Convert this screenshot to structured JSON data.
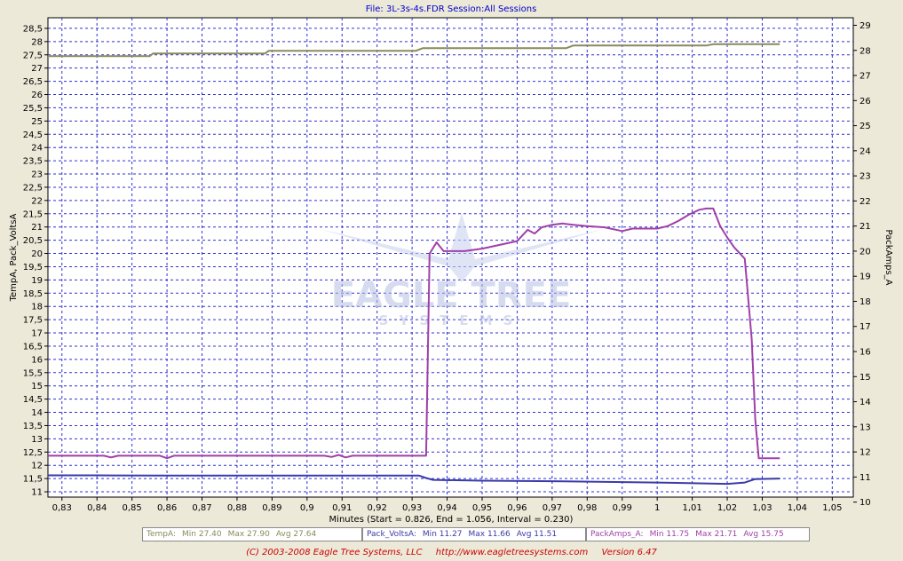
{
  "title": "File: 3L-3s-4s.FDR   Session:All Sessions",
  "watermark": {
    "line1": "EAGLE TREE",
    "line2": "SYSTEMS"
  },
  "footer": {
    "copyright": "(C) 2003-2008 Eagle Tree Systems, LLC",
    "url": "http://www.eagletreesystems.com",
    "version": "Version 6.47"
  },
  "legend": [
    {
      "name": "TempA:",
      "min": "Min 27.40",
      "max": "Max 27.90",
      "avg": "Avg 27.64",
      "color": "#8a8a5a"
    },
    {
      "name": "Pack_VoltsA:",
      "min": "Min 11.27",
      "max": "Max 11.66",
      "avg": "Avg 11.51",
      "color": "#3a3aa8"
    },
    {
      "name": "PackAmps_A:",
      "min": "Min 11.75",
      "max": "Max 21.71",
      "avg": "Avg 15.75",
      "color": "#a040a8"
    }
  ],
  "chart_data": {
    "type": "line",
    "xlabel": "Minutes (Start = 0.826,  End = 1.056,  Interval =  0.230)",
    "ylabel_left": "TempA, Pack_VoltsA",
    "ylabel_right": "PackAmps_A",
    "xlim": [
      0.826,
      1.056
    ],
    "ylim_left": [
      10.8,
      28.9
    ],
    "ylim_right": [
      10.2,
      29.3
    ],
    "x_ticks": [
      "0,83",
      "0,84",
      "0,85",
      "0,86",
      "0,87",
      "0,88",
      "0,89",
      "0,9",
      "0,91",
      "0,92",
      "0,93",
      "0,94",
      "0,95",
      "0,96",
      "0,97",
      "0,98",
      "0,99",
      "1",
      "1,01",
      "1,02",
      "1,03",
      "1,04",
      "1,05"
    ],
    "x_tick_values": [
      0.83,
      0.84,
      0.85,
      0.86,
      0.87,
      0.88,
      0.89,
      0.9,
      0.91,
      0.92,
      0.93,
      0.94,
      0.95,
      0.96,
      0.97,
      0.98,
      0.99,
      1.0,
      1.01,
      1.02,
      1.03,
      1.04,
      1.05
    ],
    "y_left_ticks": [
      "11",
      "11,5",
      "12",
      "12,5",
      "13",
      "13,5",
      "14",
      "14,5",
      "15",
      "15,5",
      "16",
      "16,5",
      "17",
      "17,5",
      "18",
      "18,5",
      "19",
      "19,5",
      "20",
      "20,5",
      "21",
      "21,5",
      "22",
      "22,5",
      "23",
      "23,5",
      "24",
      "24,5",
      "25",
      "25,5",
      "26",
      "26,5",
      "27",
      "27,5",
      "28",
      "28,5"
    ],
    "y_left_tick_values": [
      11,
      11.5,
      12,
      12.5,
      13,
      13.5,
      14,
      14.5,
      15,
      15.5,
      16,
      16.5,
      17,
      17.5,
      18,
      18.5,
      19,
      19.5,
      20,
      20.5,
      21,
      21.5,
      22,
      22.5,
      23,
      23.5,
      24,
      24.5,
      25,
      25.5,
      26,
      26.5,
      27,
      27.5,
      28,
      28.5
    ],
    "y_right_ticks": [
      "10",
      "11",
      "12",
      "13",
      "14",
      "15",
      "16",
      "17",
      "18",
      "19",
      "20",
      "21",
      "22",
      "23",
      "24",
      "25",
      "26",
      "27",
      "28",
      "29"
    ],
    "y_right_tick_values": [
      10,
      11,
      12,
      13,
      14,
      15,
      16,
      17,
      18,
      19,
      20,
      21,
      22,
      23,
      24,
      25,
      26,
      27,
      28,
      29
    ],
    "grid": true,
    "legend_position": "bottom",
    "series": [
      {
        "name": "TempA",
        "axis": "left",
        "color": "#8a8a5a",
        "x": [
          0.826,
          0.855,
          0.856,
          0.888,
          0.889,
          0.931,
          0.933,
          0.974,
          0.976,
          1.014,
          1.016,
          1.035
        ],
        "y": [
          27.45,
          27.45,
          27.55,
          27.55,
          27.65,
          27.65,
          27.75,
          27.75,
          27.85,
          27.85,
          27.9,
          27.9
        ]
      },
      {
        "name": "Pack_VoltsA",
        "axis": "left",
        "color": "#3a3aa8",
        "x": [
          0.826,
          0.84,
          0.86,
          0.88,
          0.9,
          0.92,
          0.932,
          0.934,
          0.936,
          0.95,
          0.97,
          1.0,
          1.02,
          1.025,
          1.028,
          1.035
        ],
        "y": [
          11.62,
          11.62,
          11.61,
          11.61,
          11.61,
          11.61,
          11.61,
          11.52,
          11.45,
          11.42,
          11.4,
          11.35,
          11.3,
          11.35,
          11.48,
          11.5
        ]
      },
      {
        "name": "PackAmps_A",
        "axis": "right",
        "color": "#a040a8",
        "x": [
          0.826,
          0.842,
          0.844,
          0.846,
          0.858,
          0.86,
          0.862,
          0.873,
          0.888,
          0.89,
          0.905,
          0.907,
          0.909,
          0.911,
          0.913,
          0.933,
          0.934,
          0.935,
          0.937,
          0.939,
          0.94,
          0.945,
          0.95,
          0.955,
          0.96,
          0.963,
          0.965,
          0.967,
          0.97,
          0.973,
          0.976,
          0.98,
          0.985,
          0.99,
          0.993,
          1.0,
          1.003,
          1.006,
          1.009,
          1.012,
          1.014,
          1.016,
          1.018,
          1.02,
          1.022,
          1.025,
          1.027,
          1.028,
          1.029,
          1.031,
          1.033,
          1.035
        ],
        "y": [
          11.85,
          11.85,
          11.78,
          11.85,
          11.85,
          11.75,
          11.85,
          11.85,
          11.85,
          11.85,
          11.85,
          11.8,
          11.88,
          11.78,
          11.85,
          11.85,
          11.85,
          19.9,
          20.35,
          20.0,
          20.0,
          20.0,
          20.1,
          20.25,
          20.4,
          20.85,
          20.7,
          20.95,
          21.05,
          21.1,
          21.05,
          21.0,
          20.95,
          20.8,
          20.9,
          20.9,
          21.0,
          21.2,
          21.45,
          21.65,
          21.7,
          21.7,
          21.0,
          20.55,
          20.15,
          19.7,
          16.5,
          13.3,
          11.75,
          11.75,
          11.75,
          11.75
        ]
      }
    ]
  }
}
